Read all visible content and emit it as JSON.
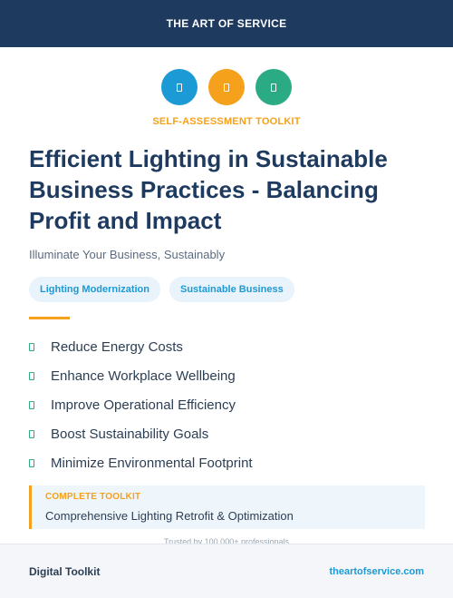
{
  "header": {
    "brand": "THE ART OF SERVICE"
  },
  "icons": [
    {
      "name": "document-icon",
      "color": "#1c9ad6"
    },
    {
      "name": "document-icon",
      "color": "#f5a11c"
    },
    {
      "name": "document-icon",
      "color": "#2bab84"
    }
  ],
  "eyebrow": "SELF-ASSESSMENT TOOLKIT",
  "title": "Efficient Lighting in Sustainable Business Practices - Balancing Profit and Impact",
  "subtitle": "Illuminate Your Business, Sustainably",
  "tags": [
    "Lighting Modernization",
    "Sustainable Business"
  ],
  "benefits": [
    "Reduce Energy Costs",
    "Enhance Workplace Wellbeing",
    "Improve Operational Efficiency",
    "Boost Sustainability Goals",
    "Minimize Environmental Footprint"
  ],
  "callout": {
    "label": "COMPLETE TOOLKIT",
    "text": "Comprehensive Lighting Retrofit & Optimization"
  },
  "trusted": "Trusted by 100,000+ professionals",
  "footer": {
    "left": "Digital Toolkit",
    "right": "theartofservice.com"
  },
  "colors": {
    "navy": "#1e3a5f",
    "blue": "#1c9ad6",
    "orange": "#f5a11c",
    "green": "#2bab84"
  }
}
